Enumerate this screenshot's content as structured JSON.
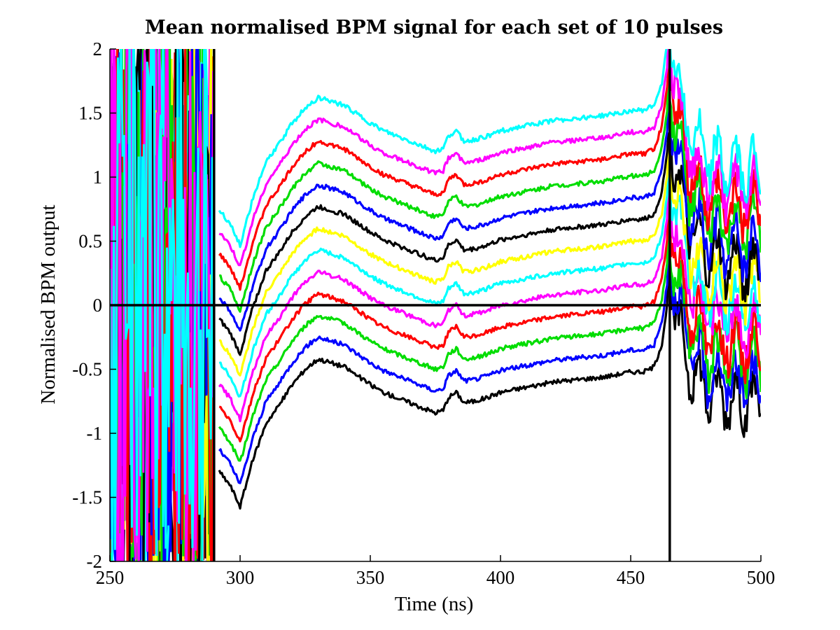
{
  "chart_data": {
    "type": "line",
    "title": "Mean normalised BPM signal for each set of 10 pulses",
    "xlabel": "Time (ns)",
    "ylabel": "Normalised BPM output",
    "xlim": [
      250,
      500
    ],
    "ylim": [
      -2,
      2
    ],
    "xticks": [
      250,
      300,
      350,
      400,
      450,
      500
    ],
    "yticks": [
      -2,
      -1.5,
      -1,
      -0.5,
      0,
      0.5,
      1,
      1.5,
      2
    ],
    "xtick_labels": [
      "250",
      "300",
      "350",
      "400",
      "450",
      "500"
    ],
    "ytick_labels": [
      "-2",
      "-1.5",
      "-1",
      "-0.5",
      "0",
      "0.5",
      "1",
      "1.5",
      "2"
    ],
    "grid": false,
    "legend": "none",
    "reference_lines": {
      "horizontal_y": 0,
      "vertical_x": [
        290,
        465
      ]
    },
    "noise_region_x": [
      250,
      290
    ],
    "series_colors": [
      "#000000",
      "#0000ff",
      "#00dd00",
      "#ff0000",
      "#ff00ff",
      "#00ffff",
      "#ffff00",
      "#000000",
      "#0000ff",
      "#00dd00",
      "#ff0000",
      "#ff00ff",
      "#00ffff"
    ],
    "series_offsets": [
      0,
      0.17,
      0.34,
      0.51,
      0.68,
      0.85,
      1.02,
      1.19,
      1.36,
      1.53,
      1.7,
      1.87,
      2.04
    ],
    "base_curve": {
      "x": [
        292,
        296,
        300,
        305,
        310,
        315,
        320,
        325,
        330,
        335,
        340,
        345,
        350,
        355,
        360,
        365,
        370,
        375,
        378,
        380,
        383,
        386,
        390,
        395,
        400,
        410,
        420,
        430,
        440,
        450,
        455,
        459,
        462,
        464
      ],
      "y": [
        -1.3,
        -1.4,
        -1.57,
        -1.2,
        -0.92,
        -0.78,
        -0.62,
        -0.5,
        -0.42,
        -0.45,
        -0.48,
        -0.55,
        -0.62,
        -0.68,
        -0.72,
        -0.76,
        -0.8,
        -0.84,
        -0.82,
        -0.72,
        -0.68,
        -0.76,
        -0.75,
        -0.72,
        -0.68,
        -0.64,
        -0.6,
        -0.58,
        -0.56,
        -0.52,
        -0.52,
        -0.48,
        -0.3,
        0.0
      ]
    }
  }
}
